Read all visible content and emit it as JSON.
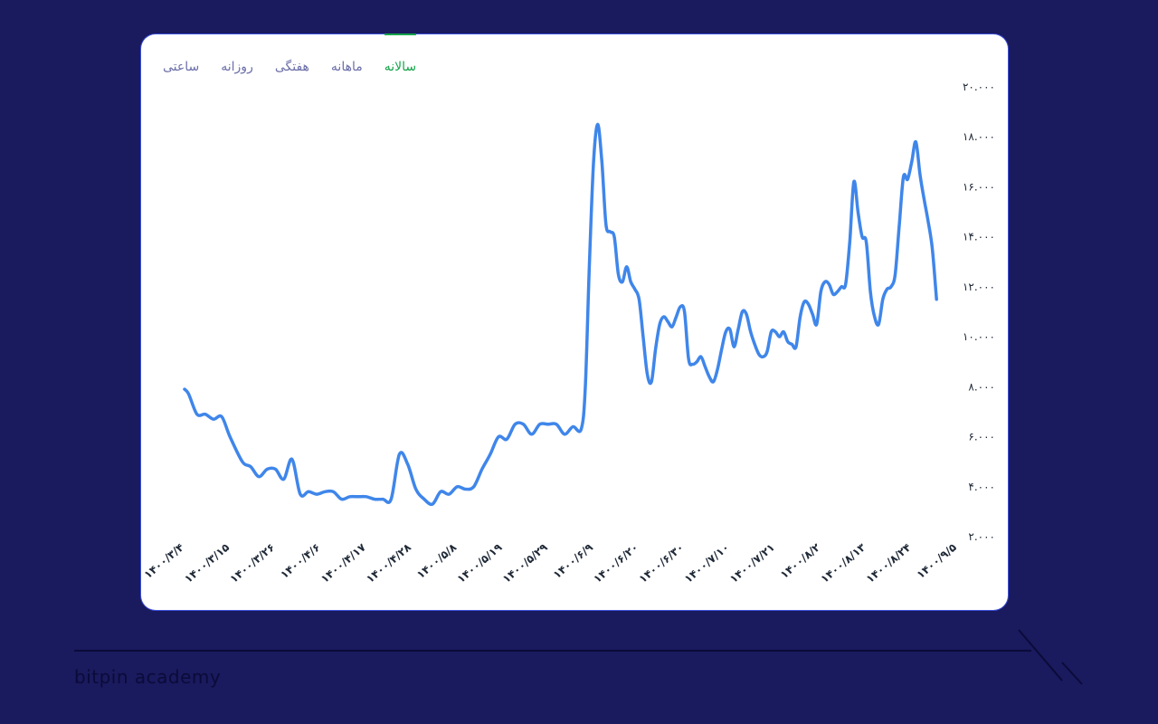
{
  "tabs": [
    {
      "label": "سالانه",
      "active": true
    },
    {
      "label": "ماهانه",
      "active": false
    },
    {
      "label": "هفتگی",
      "active": false
    },
    {
      "label": "روزانه",
      "active": false
    },
    {
      "label": "ساعتی",
      "active": false
    }
  ],
  "footer": {
    "brand": "bitpin academy"
  },
  "colors": {
    "line": "#3f86ea",
    "accent": "#16a34a",
    "background": "#1a1a5e"
  },
  "chart_data": {
    "type": "line",
    "title": "",
    "xlabel": "",
    "ylabel": "",
    "ylim": [
      2000,
      20000
    ],
    "yticks": [
      {
        "value": 20000,
        "label": "۲۰.۰۰۰"
      },
      {
        "value": 18000,
        "label": "۱۸.۰۰۰"
      },
      {
        "value": 16000,
        "label": "۱۶.۰۰۰"
      },
      {
        "value": 14000,
        "label": "۱۴.۰۰۰"
      },
      {
        "value": 12000,
        "label": "۱۲.۰۰۰"
      },
      {
        "value": 10000,
        "label": "۱۰.۰۰۰"
      },
      {
        "value": 8000,
        "label": "۸.۰۰۰"
      },
      {
        "value": 6000,
        "label": "۶.۰۰۰"
      },
      {
        "value": 4000,
        "label": "۴.۰۰۰"
      },
      {
        "value": 2000,
        "label": "۲.۰۰۰"
      }
    ],
    "xticks": [
      {
        "index": 0,
        "label": "۱۴۰۰/۳/۴"
      },
      {
        "index": 11,
        "label": "۱۴۰۰/۳/۱۵"
      },
      {
        "index": 22,
        "label": "۱۴۰۰/۳/۲۶"
      },
      {
        "index": 33,
        "label": "۱۴۰۰/۴/۶"
      },
      {
        "index": 44,
        "label": "۱۴۰۰/۴/۱۷"
      },
      {
        "index": 55,
        "label": "۱۴۰۰/۴/۲۸"
      },
      {
        "index": 66,
        "label": "۱۴۰۰/۵/۸"
      },
      {
        "index": 77,
        "label": "۱۴۰۰/۵/۱۹"
      },
      {
        "index": 88,
        "label": "۱۴۰۰/۵/۲۹"
      },
      {
        "index": 99,
        "label": "۱۴۰۰/۶/۹"
      },
      {
        "index": 110,
        "label": "۱۴۰۰/۶/۲۰"
      },
      {
        "index": 121,
        "label": "۱۴۰۰/۶/۳۰"
      },
      {
        "index": 132,
        "label": "۱۴۰۰/۷/۱۰"
      },
      {
        "index": 143,
        "label": "۱۴۰۰/۷/۲۱"
      },
      {
        "index": 154,
        "label": "۱۴۰۰/۸/۲"
      },
      {
        "index": 165,
        "label": "۱۴۰۰/۸/۱۳"
      },
      {
        "index": 176,
        "label": "۱۴۰۰/۸/۲۴"
      },
      {
        "index": 187,
        "label": "۱۴۰۰/۹/۵"
      }
    ],
    "series": [
      {
        "points": [
          [
            0,
            7900
          ],
          [
            1,
            7700
          ],
          [
            3,
            6900
          ],
          [
            5,
            6900
          ],
          [
            7,
            6700
          ],
          [
            9,
            6800
          ],
          [
            11,
            6000
          ],
          [
            14,
            5000
          ],
          [
            16,
            4800
          ],
          [
            18,
            4400
          ],
          [
            20,
            4700
          ],
          [
            22,
            4700
          ],
          [
            24,
            4300
          ],
          [
            26,
            5100
          ],
          [
            28,
            3700
          ],
          [
            30,
            3800
          ],
          [
            32,
            3700
          ],
          [
            34,
            3800
          ],
          [
            36,
            3800
          ],
          [
            38,
            3500
          ],
          [
            40,
            3600
          ],
          [
            42,
            3600
          ],
          [
            44,
            3600
          ],
          [
            46,
            3500
          ],
          [
            48,
            3500
          ],
          [
            50,
            3500
          ],
          [
            52,
            5300
          ],
          [
            54,
            4900
          ],
          [
            56,
            3900
          ],
          [
            58,
            3500
          ],
          [
            60,
            3300
          ],
          [
            62,
            3800
          ],
          [
            64,
            3700
          ],
          [
            66,
            4000
          ],
          [
            68,
            3900
          ],
          [
            70,
            4000
          ],
          [
            72,
            4700
          ],
          [
            74,
            5300
          ],
          [
            76,
            6000
          ],
          [
            78,
            5900
          ],
          [
            80,
            6500
          ],
          [
            82,
            6500
          ],
          [
            84,
            6100
          ],
          [
            86,
            6500
          ],
          [
            88,
            6500
          ],
          [
            90,
            6500
          ],
          [
            92,
            6100
          ],
          [
            94,
            6400
          ],
          [
            96,
            6300
          ],
          [
            97,
            8000
          ],
          [
            98,
            13000
          ],
          [
            99,
            17000
          ],
          [
            100,
            18500
          ],
          [
            101,
            17000
          ],
          [
            102,
            14500
          ],
          [
            103,
            14200
          ],
          [
            104,
            14000
          ],
          [
            105,
            12500
          ],
          [
            106,
            12200
          ],
          [
            107,
            12800
          ],
          [
            108,
            12200
          ],
          [
            109,
            11900
          ],
          [
            110,
            11500
          ],
          [
            111,
            10000
          ],
          [
            112,
            8500
          ],
          [
            113,
            8200
          ],
          [
            114,
            9500
          ],
          [
            115,
            10500
          ],
          [
            116,
            10800
          ],
          [
            117,
            10600
          ],
          [
            118,
            10400
          ],
          [
            119,
            10800
          ],
          [
            120,
            11200
          ],
          [
            121,
            11000
          ],
          [
            122,
            9100
          ],
          [
            123,
            8900
          ],
          [
            124,
            9000
          ],
          [
            125,
            9200
          ],
          [
            126,
            8800
          ],
          [
            127,
            8400
          ],
          [
            128,
            8200
          ],
          [
            129,
            8700
          ],
          [
            130,
            9500
          ],
          [
            131,
            10200
          ],
          [
            132,
            10300
          ],
          [
            133,
            9600
          ],
          [
            134,
            10300
          ],
          [
            135,
            11000
          ],
          [
            136,
            10900
          ],
          [
            137,
            10200
          ],
          [
            138,
            9700
          ],
          [
            139,
            9300
          ],
          [
            140,
            9200
          ],
          [
            141,
            9400
          ],
          [
            142,
            10200
          ],
          [
            143,
            10200
          ],
          [
            144,
            10000
          ],
          [
            145,
            10200
          ],
          [
            146,
            9800
          ],
          [
            147,
            9700
          ],
          [
            148,
            9600
          ],
          [
            149,
            10800
          ],
          [
            150,
            11400
          ],
          [
            151,
            11300
          ],
          [
            152,
            10900
          ],
          [
            153,
            10500
          ],
          [
            154,
            11800
          ],
          [
            155,
            12200
          ],
          [
            156,
            12100
          ],
          [
            157,
            11700
          ],
          [
            158,
            11800
          ],
          [
            159,
            12000
          ],
          [
            160,
            12100
          ],
          [
            161,
            13800
          ],
          [
            162,
            16200
          ],
          [
            163,
            15000
          ],
          [
            164,
            14000
          ],
          [
            165,
            13800
          ],
          [
            166,
            11800
          ],
          [
            167,
            10800
          ],
          [
            168,
            10500
          ],
          [
            169,
            11500
          ],
          [
            170,
            11900
          ],
          [
            171,
            12000
          ],
          [
            172,
            12500
          ],
          [
            173,
            14500
          ],
          [
            174,
            16400
          ],
          [
            175,
            16300
          ],
          [
            176,
            17000
          ],
          [
            177,
            17800
          ],
          [
            178,
            16500
          ],
          [
            179,
            15500
          ],
          [
            180,
            14600
          ],
          [
            181,
            13500
          ],
          [
            182,
            11500
          ]
        ]
      }
    ],
    "grid": false,
    "legend": "none"
  }
}
